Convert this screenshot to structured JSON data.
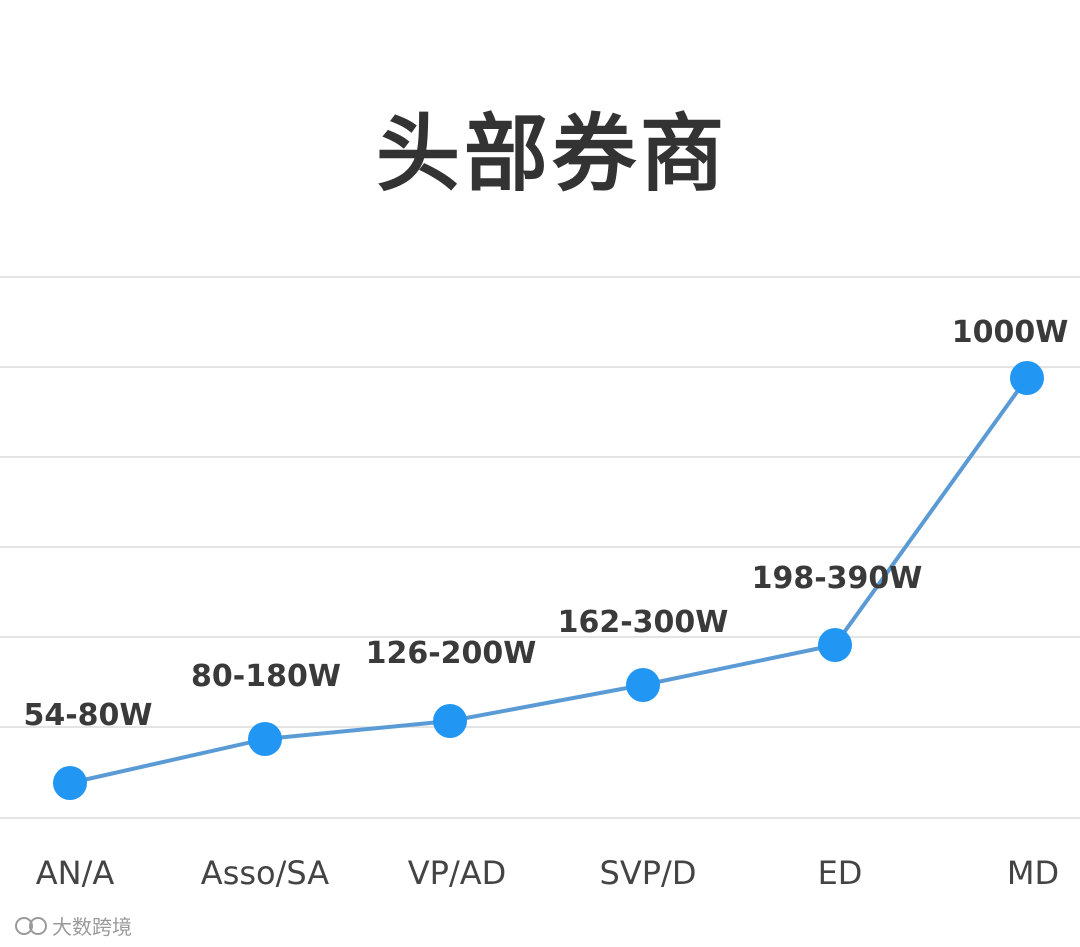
{
  "chart_data": {
    "type": "line",
    "title": "头部券商",
    "xlabel": "",
    "ylabel": "",
    "categories": [
      "AN/A",
      "Asso/SA",
      "VP/AD",
      "SVP/D",
      "ED",
      "MD"
    ],
    "series": [
      {
        "values": [
          67,
          130,
          163,
          231,
          294,
          1000
        ],
        "data_labels": [
          "54-80W",
          "80-180W",
          "126-200W",
          "162-300W",
          "198-390W",
          "1000W"
        ]
      }
    ],
    "y_scale": "non-linear (display only)",
    "grid": true,
    "legend": "none",
    "colors": {
      "line": "#5b9bd5",
      "marker": "#2196f3",
      "grid": "#dcdcdc",
      "title": "#333333"
    }
  },
  "watermark": {
    "icon": "logo-icon",
    "text": "大数跨境"
  }
}
